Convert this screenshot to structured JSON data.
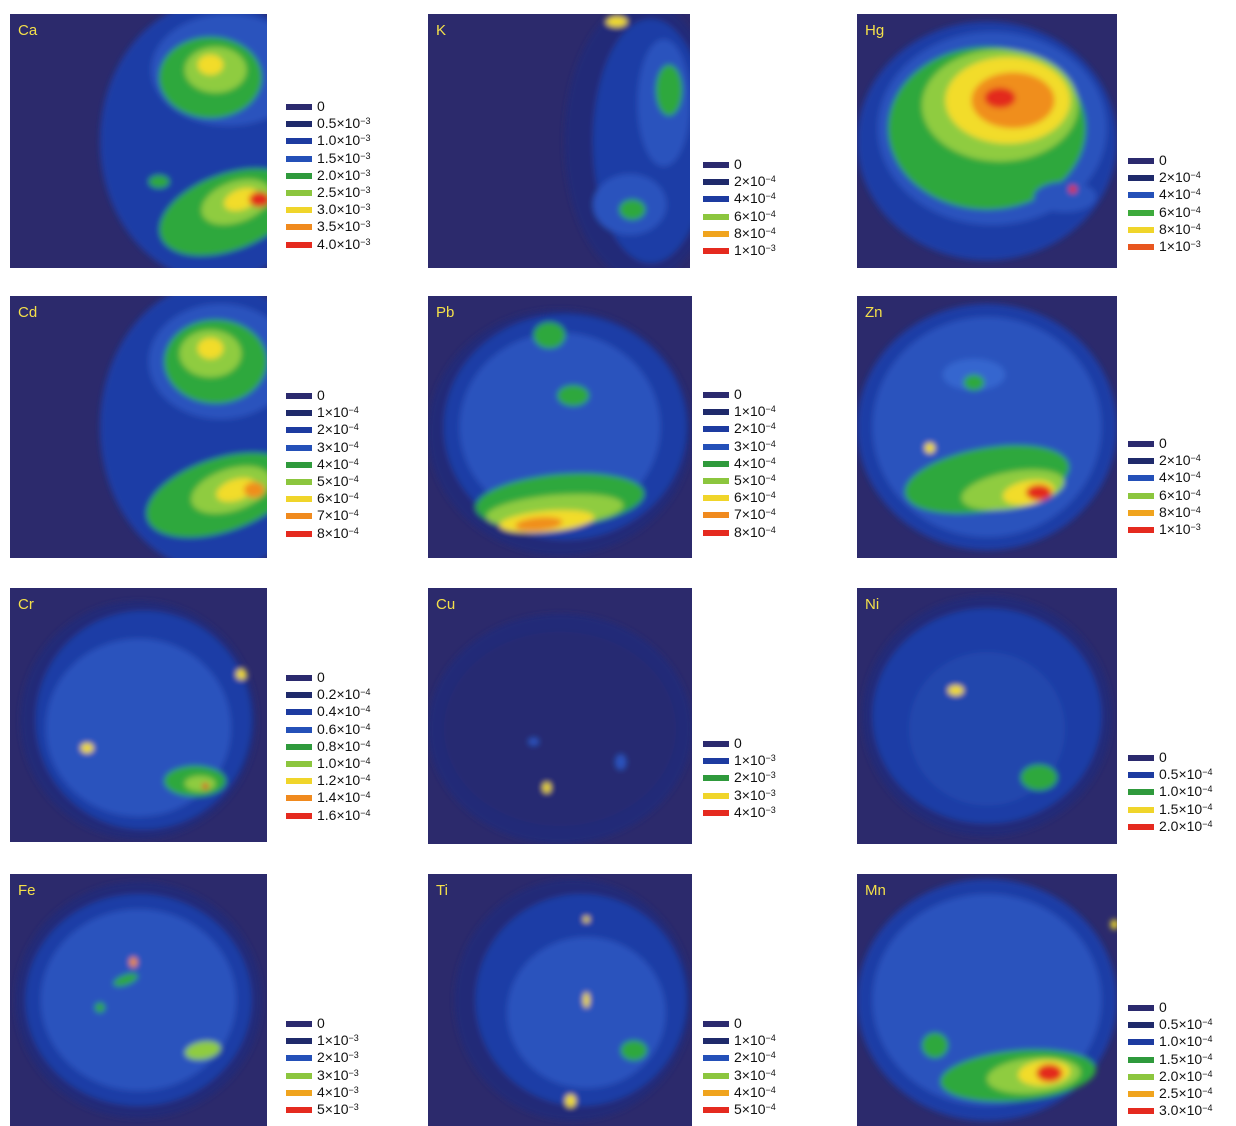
{
  "panels": [
    {
      "element": "Ca",
      "scale_unit": "×10",
      "scale_exp": "-3",
      "legend": [
        "0",
        "0.5",
        "1.0",
        "1.5",
        "2.0",
        "2.5",
        "3.0",
        "3.5",
        "4.0"
      ],
      "colors": [
        "#2b2a6e",
        "#1f2a6b",
        "#1d3ba0",
        "#2450b8",
        "#2f9a3c",
        "#8cc63e",
        "#f0d52a",
        "#f08a1e",
        "#e52a1f"
      ]
    },
    {
      "element": "K",
      "scale_unit": "×10",
      "scale_exp": "-4",
      "legend": [
        "0",
        "2",
        "4",
        "6",
        "8",
        "1"
      ],
      "last_exp": "-3",
      "colors": [
        "#2b2a6e",
        "#1f2a6b",
        "#1d3ba0",
        "#8cc63e",
        "#f0a41e",
        "#e52a1f"
      ]
    },
    {
      "element": "Hg",
      "scale_unit": "×10",
      "scale_exp": "-4",
      "legend": [
        "0",
        "2",
        "4",
        "6",
        "8",
        "1"
      ],
      "last_exp": "-3",
      "colors": [
        "#2b2a6e",
        "#1f2a6b",
        "#2450b8",
        "#3daa3c",
        "#f0d52a",
        "#e8561f"
      ]
    },
    {
      "element": "Cd",
      "scale_unit": "×10",
      "scale_exp": "-4",
      "legend": [
        "0",
        "1",
        "2",
        "3",
        "4",
        "5",
        "6",
        "7",
        "8"
      ],
      "colors": [
        "#2b2a6e",
        "#1f2a6b",
        "#1d3ba0",
        "#2450b8",
        "#2f9a3c",
        "#8cc63e",
        "#f0d52a",
        "#f08a1e",
        "#e52a1f"
      ]
    },
    {
      "element": "Pb",
      "scale_unit": "×10",
      "scale_exp": "-4",
      "legend": [
        "0",
        "1",
        "2",
        "3",
        "4",
        "5",
        "6",
        "7",
        "8"
      ],
      "colors": [
        "#2b2a6e",
        "#1f2a6b",
        "#1d3ba0",
        "#2450b8",
        "#2f9a3c",
        "#8cc63e",
        "#f0d52a",
        "#f08a1e",
        "#e52a1f"
      ]
    },
    {
      "element": "Zn",
      "scale_unit": "×10",
      "scale_exp": "-4",
      "legend": [
        "0",
        "2",
        "4",
        "6",
        "8",
        "1"
      ],
      "last_exp": "-3",
      "colors": [
        "#2b2a6e",
        "#1f2a6b",
        "#2450b8",
        "#8cc63e",
        "#f0a41e",
        "#e52a1f"
      ]
    },
    {
      "element": "Cr",
      "scale_unit": "×10",
      "scale_exp": "-4",
      "legend": [
        "0",
        "0.2",
        "0.4",
        "0.6",
        "0.8",
        "1.0",
        "1.2",
        "1.4",
        "1.6"
      ],
      "colors": [
        "#2b2a6e",
        "#1f2a6b",
        "#1d3ba0",
        "#2450b8",
        "#2f9a3c",
        "#8cc63e",
        "#f0d52a",
        "#f08a1e",
        "#e52a1f"
      ]
    },
    {
      "element": "Cu",
      "scale_unit": "×10",
      "scale_exp": "-3",
      "legend": [
        "0",
        "1",
        "2",
        "3",
        "4"
      ],
      "colors": [
        "#2b2a6e",
        "#1d3ba0",
        "#2f9a3c",
        "#f0d52a",
        "#e52a1f"
      ]
    },
    {
      "element": "Ni",
      "scale_unit": "×10",
      "scale_exp": "-4",
      "legend": [
        "0",
        "0.5",
        "1.0",
        "1.5",
        "2.0"
      ],
      "colors": [
        "#2b2a6e",
        "#1d3ba0",
        "#2f9a3c",
        "#f0d52a",
        "#e52a1f"
      ]
    },
    {
      "element": "Fe",
      "scale_unit": "×10",
      "scale_exp": "-3",
      "legend": [
        "0",
        "1",
        "2",
        "3",
        "4",
        "5"
      ],
      "colors": [
        "#2b2a6e",
        "#1f2a6b",
        "#2450b8",
        "#8cc63e",
        "#f0a41e",
        "#e52a1f"
      ]
    },
    {
      "element": "Ti",
      "scale_unit": "×10",
      "scale_exp": "-4",
      "legend": [
        "0",
        "1",
        "2",
        "3",
        "4",
        "5"
      ],
      "colors": [
        "#2b2a6e",
        "#1f2a6b",
        "#2450b8",
        "#8cc63e",
        "#f0a41e",
        "#e52a1f"
      ]
    },
    {
      "element": "Mn",
      "scale_unit": "×10",
      "scale_exp": "-4",
      "legend": [
        "0",
        "0.5",
        "1.0",
        "1.5",
        "2.0",
        "2.5",
        "3.0"
      ],
      "colors": [
        "#2b2a6e",
        "#1f2a6b",
        "#1d3ba0",
        "#2f9a3c",
        "#8cc63e",
        "#f0a41e",
        "#e52a1f"
      ]
    }
  ],
  "chart_data": [
    {
      "type": "heatmap",
      "title": "Ca",
      "legend": [
        "0",
        "0.5×10-3",
        "1.0×10-3",
        "1.5×10-3",
        "2.0×10-3",
        "2.5×10-3",
        "3.0×10-3",
        "3.5×10-3",
        "4.0×10-3"
      ],
      "range": [
        0,
        0.004
      ]
    },
    {
      "type": "heatmap",
      "title": "K",
      "legend": [
        "0",
        "2×10-4",
        "4×10-4",
        "6×10-4",
        "8×10-4",
        "1×10-3"
      ],
      "range": [
        0,
        0.001
      ]
    },
    {
      "type": "heatmap",
      "title": "Hg",
      "legend": [
        "0",
        "2×10-4",
        "4×10-4",
        "6×10-4",
        "8×10-4",
        "1×10-3"
      ],
      "range": [
        0,
        0.001
      ]
    },
    {
      "type": "heatmap",
      "title": "Cd",
      "legend": [
        "0",
        "1×10-4",
        "2×10-4",
        "3×10-4",
        "4×10-4",
        "5×10-4",
        "6×10-4",
        "7×10-4",
        "8×10-4"
      ],
      "range": [
        0,
        0.0008
      ]
    },
    {
      "type": "heatmap",
      "title": "Pb",
      "legend": [
        "0",
        "1×10-4",
        "2×10-4",
        "3×10-4",
        "4×10-4",
        "5×10-4",
        "6×10-4",
        "7×10-4",
        "8×10-4"
      ],
      "range": [
        0,
        0.0008
      ]
    },
    {
      "type": "heatmap",
      "title": "Zn",
      "legend": [
        "0",
        "2×10-4",
        "4×10-4",
        "6×10-4",
        "8×10-4",
        "1×10-3"
      ],
      "range": [
        0,
        0.001
      ]
    },
    {
      "type": "heatmap",
      "title": "Cr",
      "legend": [
        "0",
        "0.2×10-4",
        "0.4×10-4",
        "0.6×10-4",
        "0.8×10-4",
        "1.0×10-4",
        "1.2×10-4",
        "1.4×10-4",
        "1.6×10-4"
      ],
      "range": [
        0,
        0.00016
      ]
    },
    {
      "type": "heatmap",
      "title": "Cu",
      "legend": [
        "0",
        "1×10-3",
        "2×10-3",
        "3×10-3",
        "4×10-3"
      ],
      "range": [
        0,
        0.004
      ]
    },
    {
      "type": "heatmap",
      "title": "Ni",
      "legend": [
        "0",
        "0.5×10-4",
        "1.0×10-4",
        "1.5×10-4",
        "2.0×10-4"
      ],
      "range": [
        0,
        0.0002
      ]
    },
    {
      "type": "heatmap",
      "title": "Fe",
      "legend": [
        "0",
        "1×10-3",
        "2×10-3",
        "3×10-3",
        "4×10-3",
        "5×10-3"
      ],
      "range": [
        0,
        0.005
      ]
    },
    {
      "type": "heatmap",
      "title": "Ti",
      "legend": [
        "0",
        "1×10-4",
        "2×10-4",
        "3×10-4",
        "4×10-4",
        "5×10-4"
      ],
      "range": [
        0,
        0.0005
      ]
    },
    {
      "type": "heatmap",
      "title": "Mn",
      "legend": [
        "0",
        "0.5×10-4",
        "1.0×10-4",
        "1.5×10-4",
        "2.0×10-4",
        "2.5×10-4",
        "3.0×10-4"
      ],
      "range": [
        0,
        0.0003
      ]
    }
  ]
}
